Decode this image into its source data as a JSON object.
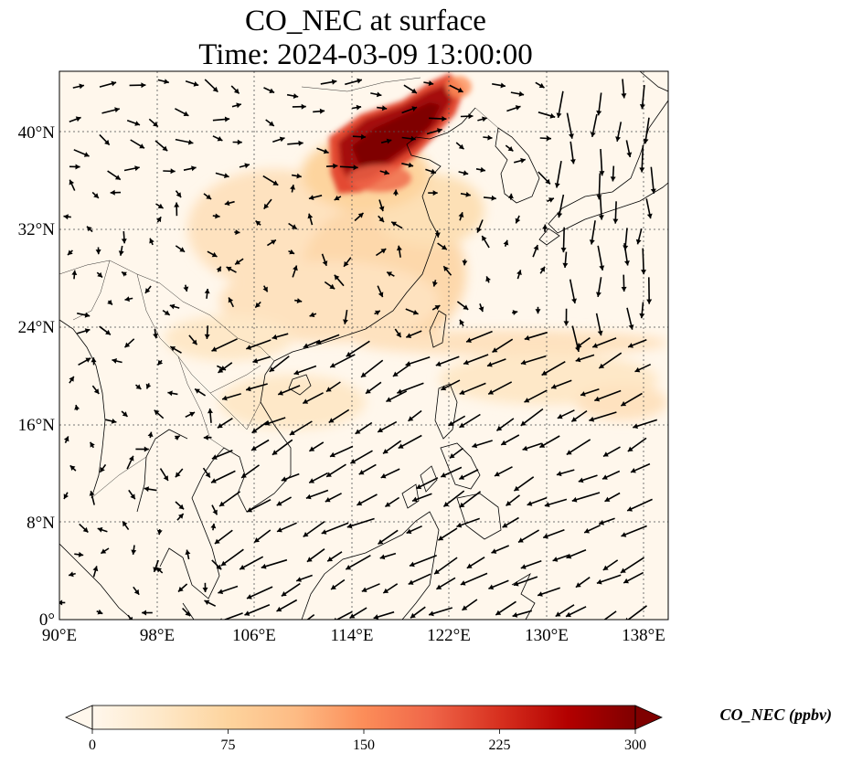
{
  "title_line1": "CO_NEC at surface",
  "title_line2": "Time: 2024-03-09 13:00:00",
  "map": {
    "lon_range": [
      90,
      140
    ],
    "lat_range": [
      0,
      45
    ],
    "grid": true,
    "lon_ticks": [
      "90°E",
      "98°E",
      "106°E",
      "114°E",
      "122°E",
      "130°E",
      "138°E"
    ],
    "lat_ticks": [
      "0°",
      "8°N",
      "16°N",
      "24°N",
      "32°N",
      "40°N"
    ],
    "features": [
      "coastlines",
      "country borders",
      "wind vectors",
      "CO concentration field"
    ]
  },
  "colorbar": {
    "label": "CO_NEC (ppbv)",
    "ticks": [
      "0",
      "75",
      "150",
      "225",
      "300"
    ],
    "range": [
      0,
      300
    ],
    "extend": "both",
    "colormap": "OrRd",
    "colors": [
      "#fff7ec",
      "#fee8c8",
      "#fdd49e",
      "#fdbb84",
      "#fc8d59",
      "#ef6548",
      "#d7301f",
      "#b30000",
      "#7f0000"
    ]
  },
  "plume": {
    "peak_region": "North China Plain / Bohai",
    "peak_value_ppbv": 300,
    "background_ppbv": 10
  }
}
